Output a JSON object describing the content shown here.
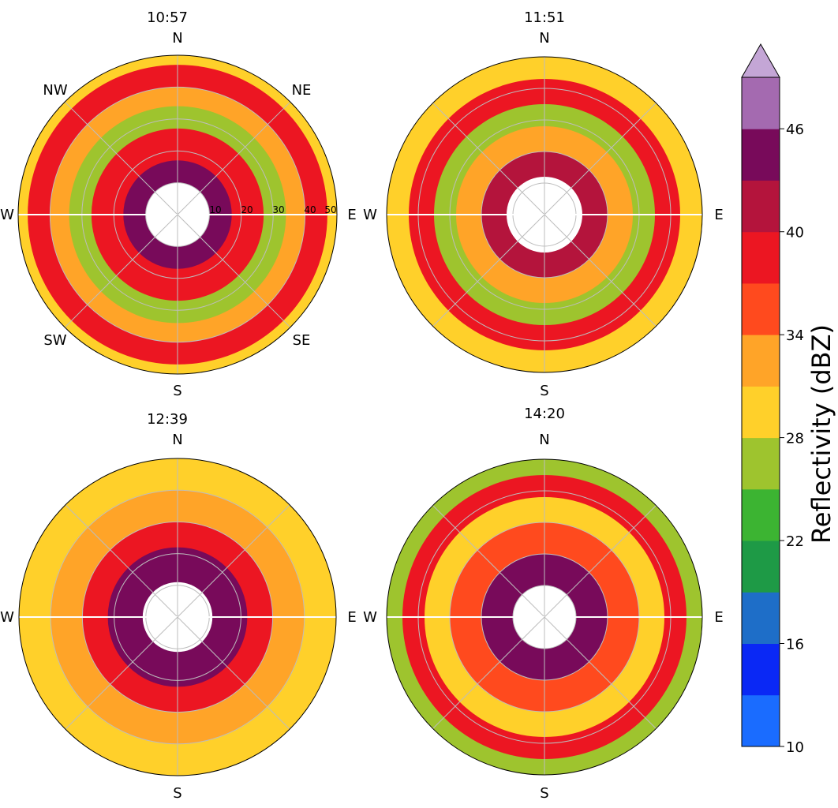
{
  "chart_data": [
    {
      "type": "heatmap",
      "title": "10:57",
      "projection": "polar",
      "direction_labels": [
        "N",
        "NE",
        "E",
        "SE",
        "S",
        "SW",
        "W",
        "NW"
      ],
      "radial_ticks": [
        "10",
        "20",
        "30",
        "40",
        "50"
      ],
      "radial_range": [
        0,
        50
      ],
      "grid": true,
      "description_bands": [
        {
          "r": [
            10,
            17
          ],
          "dBZ": 44
        },
        {
          "r": [
            17,
            27
          ],
          "dBZ": 38
        },
        {
          "r": [
            27,
            34
          ],
          "dBZ": 26
        },
        {
          "r": [
            34,
            40
          ],
          "dBZ": 31
        },
        {
          "r": [
            40,
            47
          ],
          "dBZ": 38
        },
        {
          "r": [
            47,
            50
          ],
          "dBZ": 30
        }
      ]
    },
    {
      "type": "heatmap",
      "title": "11:51",
      "projection": "polar",
      "direction_labels": [
        "N",
        "E",
        "S",
        "W"
      ],
      "radial_range": [
        0,
        50
      ],
      "grid": true,
      "description_bands": [
        {
          "r": [
            12,
            20
          ],
          "dBZ": 40
        },
        {
          "r": [
            20,
            28
          ],
          "dBZ": 31
        },
        {
          "r": [
            28,
            35
          ],
          "dBZ": 25
        },
        {
          "r": [
            35,
            43
          ],
          "dBZ": 38
        },
        {
          "r": [
            43,
            50
          ],
          "dBZ": 29
        }
      ]
    },
    {
      "type": "heatmap",
      "title": "12:39",
      "projection": "polar",
      "direction_labels": [
        "N",
        "E",
        "S",
        "W"
      ],
      "radial_range": [
        0,
        50
      ],
      "grid": true,
      "description_bands": [
        {
          "r": [
            11,
            22
          ],
          "dBZ": 43
        },
        {
          "r": [
            22,
            30
          ],
          "dBZ": 37
        },
        {
          "r": [
            30,
            40
          ],
          "dBZ": 31
        },
        {
          "r": [
            40,
            50
          ],
          "dBZ": 28
        }
      ]
    },
    {
      "type": "heatmap",
      "title": "14:20",
      "projection": "polar",
      "direction_labels": [
        "N",
        "E",
        "S",
        "W"
      ],
      "radial_range": [
        0,
        50
      ],
      "grid": true,
      "description_bands": [
        {
          "r": [
            10,
            20
          ],
          "dBZ": 43
        },
        {
          "r": [
            20,
            30
          ],
          "dBZ": 36
        },
        {
          "r": [
            30,
            38
          ],
          "dBZ": 30
        },
        {
          "r": [
            38,
            45
          ],
          "dBZ": 37
        },
        {
          "r": [
            45,
            50
          ],
          "dBZ": 27
        }
      ]
    }
  ],
  "colorbar": {
    "label": "Reflectivity (dBZ)",
    "tick_labels": [
      "10",
      "16",
      "22",
      "28",
      "34",
      "40",
      "46"
    ],
    "ticks": [
      10,
      16,
      22,
      28,
      34,
      40,
      46
    ],
    "levels": [
      10,
      13,
      16,
      19,
      22,
      25,
      28,
      31,
      34,
      37,
      40,
      43,
      46,
      49
    ],
    "colors": [
      "#1a6cff",
      "#0a28f5",
      "#1e6ec8",
      "#1e9a46",
      "#3cb432",
      "#9ec42e",
      "#ffd02a",
      "#ffa428",
      "#ff4a1e",
      "#ec1622",
      "#b4143c",
      "#780a5a",
      "#a46ab0"
    ],
    "extend_color": "#c4a6d6"
  }
}
